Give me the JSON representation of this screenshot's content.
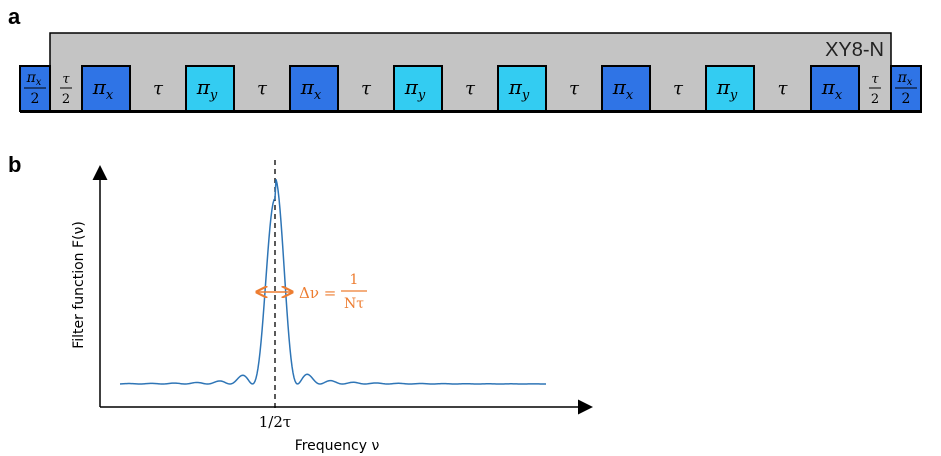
{
  "panel_a": {
    "label": "a",
    "sequence_name": "XY8-N",
    "edge_pulse_num": "π",
    "edge_pulse_sub": "x",
    "edge_pulse_den": "2",
    "half_tau_num": "τ",
    "half_tau_den": "2",
    "tau": "τ",
    "pulses": [
      {
        "sym": "π",
        "sub": "x",
        "axis": "x"
      },
      {
        "sym": "π",
        "sub": "y",
        "axis": "y"
      },
      {
        "sym": "π",
        "sub": "x",
        "axis": "x"
      },
      {
        "sym": "π",
        "sub": "y",
        "axis": "y"
      },
      {
        "sym": "π",
        "sub": "y",
        "axis": "y"
      },
      {
        "sym": "π",
        "sub": "x",
        "axis": "x"
      },
      {
        "sym": "π",
        "sub": "y",
        "axis": "y"
      },
      {
        "sym": "π",
        "sub": "x",
        "axis": "x"
      }
    ],
    "colors": {
      "x_pulse": "#2f74e6",
      "y_pulse": "#33ccf2",
      "block": "#c4c4c4"
    }
  },
  "panel_b": {
    "label": "b",
    "y_axis_label": "Filter function F(ν)",
    "x_axis_label": "Frequency ν",
    "peak_tick_label": "1/2τ",
    "linewidth_lhs": "Δν =",
    "linewidth_num": "1",
    "linewidth_den": "Nτ",
    "colors": {
      "curve": "#2e75b6",
      "annotation": "#ed7d31"
    }
  }
}
